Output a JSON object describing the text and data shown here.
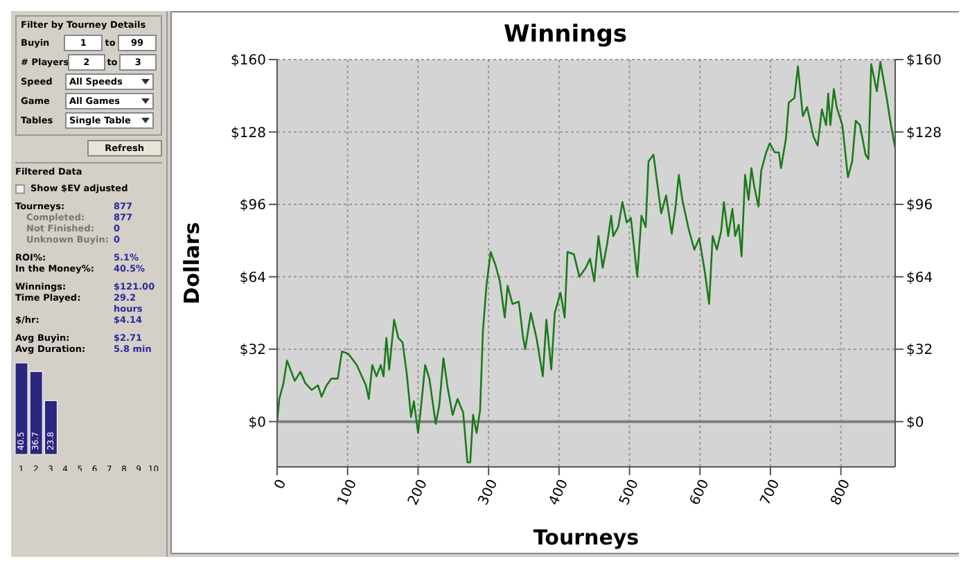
{
  "chart_data": [
    {
      "type": "other",
      "title": "Filter by Tourney Details",
      "annotations": [
        "Buyin",
        "1",
        "to",
        "99",
        "# Players",
        "2",
        "to",
        "3",
        "Speed",
        "All Speeds",
        "Game",
        "All Games",
        "Tables",
        "Single Table",
        "Refresh",
        "Filtered Data",
        "Show $EV adjusted",
        "Tourneys:",
        "877",
        "Completed:",
        "877",
        "Not Finished:",
        "0",
        "Unknown Buyin:",
        "0",
        "ROI%:",
        "5.1%",
        "In the Money%:",
        "40.5%",
        "Winnings:",
        "$121.00",
        "Time Played:",
        "29.2 hours",
        "$/hr:",
        "$4.14",
        "Avg Buyin:",
        "$2.71",
        "Avg Duration:",
        "5.8 min"
      ]
    },
    {
      "type": "bar",
      "categories": [
        "1",
        "2",
        "3",
        "4",
        "5",
        "6",
        "7",
        "8",
        "9",
        "10"
      ],
      "values": [
        40.5,
        36.7,
        23.8,
        null,
        null,
        null,
        null,
        null,
        null,
        null
      ],
      "color": "#2b2680",
      "data_labels": true,
      "tick_labels": "x"
    },
    {
      "type": "line",
      "title": "Winnings",
      "xlabel": "Tourneys",
      "ylabel": "Dollars",
      "x": [
        0,
        3,
        9,
        14,
        25,
        33,
        40,
        49,
        58,
        63,
        70,
        77,
        86,
        92,
        101,
        113,
        126,
        130,
        135,
        141,
        147,
        151,
        155,
        159,
        166,
        172,
        178,
        184,
        190,
        194,
        200,
        205,
        210,
        216,
        225,
        230,
        236,
        242,
        249,
        256,
        264,
        270,
        274,
        278,
        283,
        288,
        292,
        297,
        303,
        310,
        316,
        323,
        327,
        334,
        343,
        349,
        352,
        360,
        368,
        377,
        382,
        389,
        394,
        402,
        408,
        412,
        421,
        429,
        438,
        444,
        450,
        456,
        462,
        468,
        474,
        477,
        484,
        490,
        496,
        502,
        511,
        517,
        523,
        527,
        534,
        545,
        552,
        560,
        565,
        570,
        575,
        584,
        592,
        599,
        607,
        613,
        618,
        624,
        630,
        634,
        640,
        646,
        650,
        655,
        659,
        664,
        669,
        673,
        677,
        683,
        687,
        694,
        699,
        706,
        712,
        715,
        722,
        726,
        734,
        739,
        746,
        752,
        761,
        767,
        773,
        779,
        782,
        785,
        790,
        794,
        802,
        810,
        816,
        821,
        827,
        835,
        839,
        843,
        851,
        856,
        865,
        871,
        877
      ],
      "series": [
        {
          "color": "#1a7a1a",
          "values": [
            0,
            10,
            17,
            27,
            18,
            22,
            17,
            14,
            16,
            11,
            16,
            19,
            19,
            31,
            30,
            25,
            16,
            10,
            25,
            20,
            25,
            20,
            37,
            23,
            45,
            37,
            35,
            21,
            2,
            9,
            -5,
            9,
            25,
            19,
            -1,
            7,
            28,
            15,
            3,
            10,
            4,
            -18,
            -18,
            3,
            -5,
            5,
            40,
            60,
            75,
            69,
            62,
            46,
            60,
            52,
            53,
            37,
            32,
            48,
            37,
            20,
            45,
            23,
            48,
            57,
            46,
            75,
            74,
            64,
            68,
            72,
            62,
            82,
            68,
            78,
            91,
            82,
            86,
            97,
            88,
            90,
            64,
            91,
            86,
            115,
            118,
            92,
            100,
            83,
            94,
            109,
            98,
            85,
            76,
            81,
            66,
            52,
            82,
            76,
            84,
            97,
            82,
            94,
            82,
            87,
            73,
            109,
            98,
            112,
            104,
            95,
            111,
            119,
            123,
            119,
            119,
            112,
            125,
            141,
            143,
            157,
            135,
            139,
            126,
            122,
            138,
            131,
            145,
            131,
            147,
            139,
            131,
            108,
            115,
            133,
            131,
            118,
            116,
            158,
            146,
            159,
            143,
            131,
            121
          ]
        }
      ],
      "xlim": [
        0,
        877
      ],
      "xticks": [
        0,
        100,
        200,
        300,
        400,
        500,
        600,
        700,
        800
      ],
      "ylim": [
        -20,
        160
      ],
      "yticks": [
        {
          "value": 0,
          "label": "$0"
        },
        {
          "value": 32,
          "label": "$32"
        },
        {
          "value": 64,
          "label": "$64"
        },
        {
          "value": 96,
          "label": "$96"
        },
        {
          "value": 128,
          "label": "$128"
        },
        {
          "value": 160,
          "label": "$160"
        }
      ],
      "y2lim": [
        -20,
        160
      ],
      "y2ticks": [
        {
          "value": 0,
          "label": "$0"
        },
        {
          "value": 32,
          "label": "$32"
        },
        {
          "value": 64,
          "label": "$64"
        },
        {
          "value": 96,
          "label": "$96"
        },
        {
          "value": 128,
          "label": "$128"
        },
        {
          "value": 160,
          "label": "$160"
        }
      ],
      "ref_lines": [
        {
          "axis": "y",
          "value": 0,
          "color": "#808080"
        }
      ],
      "grid": true,
      "marker": "none",
      "line_style": "solid"
    }
  ]
}
